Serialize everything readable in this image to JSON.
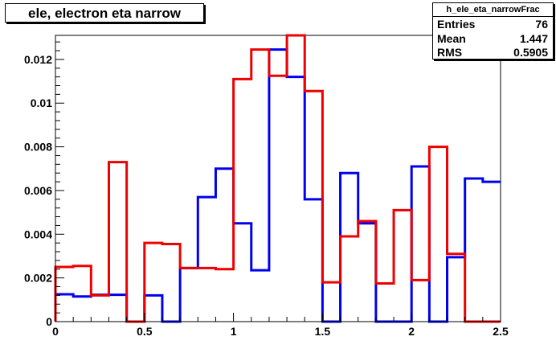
{
  "title": "ele, electron eta narrow",
  "stats": {
    "name": "h_ele_eta_narrowFrac",
    "rows": [
      {
        "label": "Entries",
        "value": "76"
      },
      {
        "label": "Mean",
        "value": "1.447"
      },
      {
        "label": "RMS",
        "value": "0.5905"
      }
    ]
  },
  "chart_data": {
    "type": "histogram",
    "title": "ele, electron eta narrow",
    "xlabel": "",
    "ylabel": "",
    "xlim": [
      0,
      2.5
    ],
    "ylim": [
      0,
      0.0131
    ],
    "bin_edges": [
      0,
      0.1,
      0.2,
      0.3,
      0.4,
      0.5,
      0.6,
      0.7,
      0.8,
      0.9,
      1.0,
      1.1,
      1.2,
      1.3,
      1.4,
      1.5,
      1.6,
      1.7,
      1.8,
      1.9,
      2.0,
      2.1,
      2.2,
      2.3,
      2.4,
      2.5
    ],
    "x_ticks": [
      {
        "value": 0,
        "label": "0"
      },
      {
        "value": 0.5,
        "label": "0.5"
      },
      {
        "value": 1.0,
        "label": "1"
      },
      {
        "value": 1.5,
        "label": "1.5"
      },
      {
        "value": 2.0,
        "label": "2"
      },
      {
        "value": 2.5,
        "label": "2.5"
      }
    ],
    "y_ticks": [
      {
        "value": 0,
        "label": "0"
      },
      {
        "value": 0.002,
        "label": "0.002"
      },
      {
        "value": 0.004,
        "label": "0.004"
      },
      {
        "value": 0.006,
        "label": "0.006"
      },
      {
        "value": 0.008,
        "label": "0.008"
      },
      {
        "value": 0.01,
        "label": "0.01"
      },
      {
        "value": 0.012,
        "label": "0.012"
      }
    ],
    "series": [
      {
        "color": "#0000ee",
        "values": [
          0.00125,
          0.00115,
          0.00123,
          0.00123,
          0.0,
          0.0012,
          0.0,
          0.00245,
          0.0057,
          0.007,
          0.0045,
          0.00235,
          0.01245,
          0.0112,
          0.0056,
          0.0,
          0.0068,
          0.0045,
          0.0,
          0.0,
          0.0071,
          0.0,
          0.00295,
          0.00655,
          0.0064
        ]
      },
      {
        "color": "#ee0000",
        "values": [
          0.0025,
          0.00255,
          0.0012,
          0.0073,
          0.0,
          0.0036,
          0.00355,
          0.00245,
          0.00245,
          0.0024,
          0.0111,
          0.01245,
          0.01125,
          0.0131,
          0.01055,
          0.0018,
          0.0039,
          0.0046,
          0.00175,
          0.0051,
          0.0019,
          0.008,
          0.0031,
          0.0,
          0.0
        ]
      }
    ]
  }
}
